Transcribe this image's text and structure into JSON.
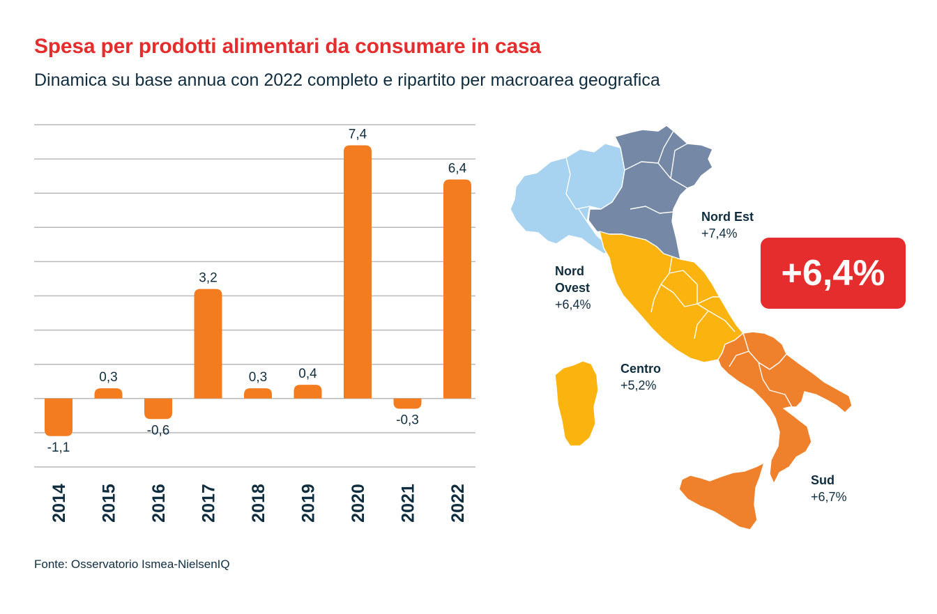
{
  "header": {
    "title": "Spesa per prodotti alimentari da consumare in casa",
    "subtitle": "Dinamica su base annua con 2022 completo e ripartito per macroarea geografica"
  },
  "source": "Fonte: Osservatorio Ismea-NielsenIQ",
  "colors": {
    "bar": "#f47c20",
    "title": "#e42d2c",
    "text": "#0f2d3f",
    "grid": "#b9b9b9",
    "nord_ovest": "#a8d3f0",
    "nord_est": "#7589a6",
    "centro": "#fbb40f",
    "sud": "#f0812c",
    "badge": "#e42d2c"
  },
  "chart_data": {
    "type": "bar",
    "categories": [
      "2014",
      "2015",
      "2016",
      "2017",
      "2018",
      "2019",
      "2020",
      "2021",
      "2022"
    ],
    "values": [
      -1.1,
      0.3,
      -0.6,
      3.2,
      0.3,
      0.4,
      7.4,
      -0.3,
      6.4
    ],
    "value_labels": [
      "-1,1",
      "0,3",
      "-0,6",
      "3,2",
      "0,3",
      "0,4",
      "7,4",
      "-0,3",
      "6,4"
    ],
    "ylim": [
      -2,
      8
    ],
    "grid": true,
    "title": "",
    "xlabel": "",
    "ylabel": ""
  },
  "map": {
    "total": "+6,4%",
    "regions": {
      "nord_est": {
        "name": "Nord Est",
        "value": "+7,4%"
      },
      "nord_ovest": {
        "name_line1": "Nord",
        "name_line2": "Ovest",
        "value": "+6,4%"
      },
      "centro": {
        "name": "Centro",
        "value": "+5,2%"
      },
      "sud": {
        "name": "Sud",
        "value": "+6,7%"
      }
    }
  }
}
